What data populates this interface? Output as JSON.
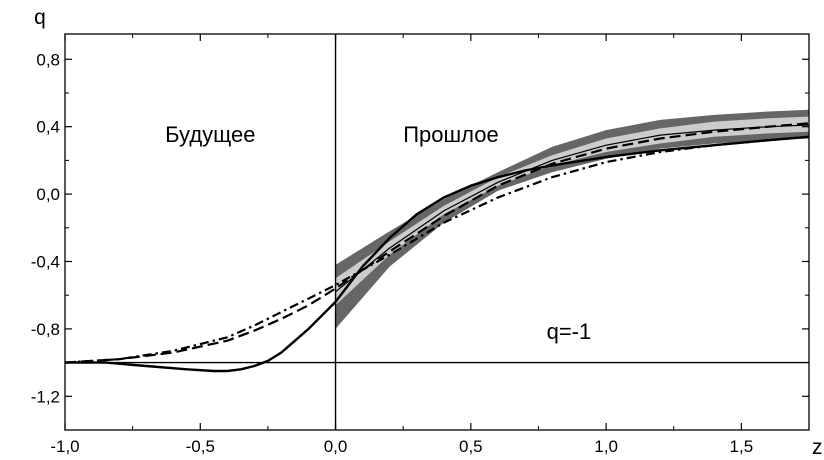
{
  "chart_data": {
    "type": "line",
    "xlabel": "z",
    "ylabel": "q",
    "xlim": [
      -1.0,
      1.75
    ],
    "ylim": [
      -1.4,
      0.95
    ],
    "x_ticks": [
      -1.0,
      -0.5,
      0.0,
      0.5,
      1.0,
      1.5
    ],
    "x_tick_labels": [
      "-1,0",
      "-0,5",
      "0,0",
      "0,5",
      "1,0",
      "1,5"
    ],
    "y_ticks": [
      -1.2,
      -0.8,
      -0.4,
      0.0,
      0.4,
      0.8
    ],
    "y_tick_labels": [
      "-1,2",
      "-0,8",
      "-0,4",
      "0,0",
      "0,4",
      "0,8"
    ],
    "grid": false,
    "annotations": [
      {
        "text": "Будущее",
        "x": -0.63,
        "y": 0.31
      },
      {
        "text": "Прошлое",
        "x": 0.25,
        "y": 0.31
      },
      {
        "text": "q=-1",
        "x": 0.78,
        "y": -0.86
      }
    ],
    "reference_lines": [
      {
        "orientation": "horizontal",
        "value": -1.0,
        "label": "q=-1"
      },
      {
        "orientation": "vertical",
        "value": 0.0
      }
    ],
    "bands": [
      {
        "x": [
          0.0,
          0.2,
          0.4,
          0.6,
          0.8,
          1.0,
          1.2,
          1.4,
          1.6,
          1.75
        ],
        "lower": [
          -0.8,
          -0.43,
          -0.17,
          0.02,
          0.13,
          0.21,
          0.27,
          0.3,
          0.32,
          0.33
        ],
        "upper": [
          -0.42,
          -0.22,
          -0.03,
          0.13,
          0.28,
          0.38,
          0.44,
          0.47,
          0.49,
          0.5
        ],
        "color": "#666666"
      },
      {
        "x": [
          0.0,
          0.2,
          0.4,
          0.6,
          0.8,
          1.0,
          1.2,
          1.4,
          1.6,
          1.75
        ],
        "lower": [
          -0.66,
          -0.36,
          -0.12,
          0.05,
          0.17,
          0.25,
          0.3,
          0.34,
          0.36,
          0.37
        ],
        "upper": [
          -0.5,
          -0.28,
          -0.07,
          0.1,
          0.23,
          0.33,
          0.39,
          0.43,
          0.45,
          0.46
        ],
        "color": "#cccccc"
      }
    ],
    "series": [
      {
        "style": "solid-thin",
        "x": [
          0.0,
          0.2,
          0.4,
          0.6,
          0.8,
          1.0,
          1.2,
          1.4,
          1.6,
          1.75
        ],
        "y": [
          -0.58,
          -0.32,
          -0.1,
          0.07,
          0.2,
          0.29,
          0.35,
          0.38,
          0.4,
          0.41
        ]
      },
      {
        "style": "solid",
        "x": [
          -1.0,
          -0.85,
          -0.7,
          -0.55,
          -0.45,
          -0.4,
          -0.35,
          -0.3,
          -0.25,
          -0.2,
          -0.15,
          -0.1,
          -0.05,
          0.0,
          0.1,
          0.2,
          0.3,
          0.4,
          0.5,
          0.6,
          0.7,
          0.8,
          1.0,
          1.2,
          1.4,
          1.6,
          1.75
        ],
        "y": [
          -1.0,
          -1.0,
          -1.02,
          -1.04,
          -1.05,
          -1.05,
          -1.04,
          -1.02,
          -0.99,
          -0.94,
          -0.87,
          -0.8,
          -0.72,
          -0.64,
          -0.43,
          -0.26,
          -0.12,
          -0.02,
          0.05,
          0.1,
          0.14,
          0.17,
          0.22,
          0.26,
          0.29,
          0.32,
          0.34
        ]
      },
      {
        "style": "dashed",
        "x": [
          -1.0,
          -0.8,
          -0.6,
          -0.4,
          -0.3,
          -0.2,
          -0.1,
          0.0,
          0.2,
          0.4,
          0.6,
          0.8,
          1.0,
          1.2,
          1.4,
          1.6,
          1.75
        ],
        "y": [
          -1.0,
          -0.98,
          -0.94,
          -0.87,
          -0.81,
          -0.74,
          -0.66,
          -0.56,
          -0.34,
          -0.13,
          0.05,
          0.18,
          0.27,
          0.33,
          0.37,
          0.4,
          0.42
        ]
      },
      {
        "style": "dash-dot",
        "x": [
          -1.0,
          -0.8,
          -0.6,
          -0.4,
          -0.3,
          -0.2,
          -0.1,
          0.0,
          0.2,
          0.4,
          0.6,
          0.8,
          1.0,
          1.2,
          1.4,
          1.6,
          1.75
        ],
        "y": [
          -1.0,
          -0.98,
          -0.93,
          -0.85,
          -0.78,
          -0.7,
          -0.62,
          -0.54,
          -0.36,
          -0.17,
          -0.02,
          0.1,
          0.19,
          0.25,
          0.29,
          0.32,
          0.34
        ]
      }
    ]
  }
}
